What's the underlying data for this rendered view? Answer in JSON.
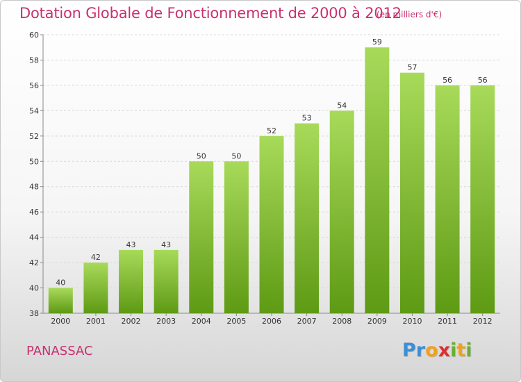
{
  "header": {
    "title": "Dotation Globale de Fonctionnement de 2000 à 2012",
    "subtitle": "(en milliers d'€)"
  },
  "footer": {
    "commune": "PANASSAC",
    "logo_letters": [
      {
        "char": "P",
        "color": "#3a8fd6"
      },
      {
        "char": "r",
        "color": "#3a8fd6"
      },
      {
        "char": "o",
        "color": "#f0a020"
      },
      {
        "char": "x",
        "color": "#d93030"
      },
      {
        "char": "i",
        "color": "#6ab030"
      },
      {
        "char": "t",
        "color": "#f0a020"
      },
      {
        "char": "i",
        "color": "#6ab030"
      }
    ]
  },
  "colors": {
    "bar_top": "#a8da5a",
    "bar_bottom": "#5e9a14",
    "accent": "#c8316e"
  },
  "chart_data": {
    "type": "bar",
    "categories": [
      "2000",
      "2001",
      "2002",
      "2003",
      "2004",
      "2005",
      "2006",
      "2007",
      "2008",
      "2009",
      "2010",
      "2011",
      "2012"
    ],
    "values": [
      40,
      42,
      43,
      43,
      50,
      50,
      52,
      53,
      54,
      59,
      57,
      56,
      56
    ],
    "data_labels": [
      "40",
      "42",
      "43",
      "43",
      "50",
      "50",
      "52",
      "53",
      "54",
      "59",
      "57",
      "56",
      "56"
    ],
    "title": "Dotation Globale de Fonctionnement de 2000 à 2012",
    "ylim": [
      38,
      60
    ],
    "yticks": [
      38,
      40,
      42,
      44,
      46,
      48,
      50,
      52,
      54,
      56,
      58,
      60
    ],
    "grid": true,
    "legend": "none"
  }
}
